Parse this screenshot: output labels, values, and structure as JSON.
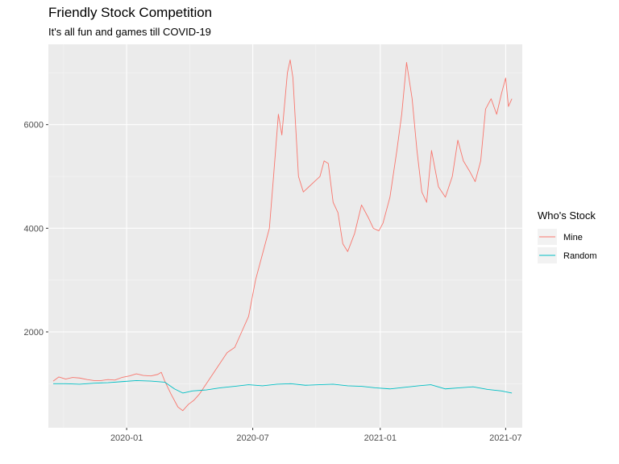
{
  "chart_data": {
    "type": "line",
    "title": "Friendly Stock Competition",
    "subtitle": "It's all fun and games till COVID-19",
    "xlabel": "",
    "ylabel": "",
    "x_type": "date",
    "xlim": [
      "2019-09-10",
      "2021-07-25"
    ],
    "ylim": [
      150,
      7550
    ],
    "x_ticks": [
      {
        "date": "2020-01-01",
        "label": "2020-01"
      },
      {
        "date": "2020-07-01",
        "label": "2020-07"
      },
      {
        "date": "2021-01-01",
        "label": "2021-01"
      },
      {
        "date": "2021-07-01",
        "label": "2021-07"
      }
    ],
    "y_ticks": [
      2000,
      4000,
      6000
    ],
    "grid": true,
    "legend": {
      "title": "Who's Stock",
      "position": "right"
    },
    "series": [
      {
        "name": "Mine",
        "color": "#F8766D",
        "points": [
          [
            "2019-09-17",
            1050
          ],
          [
            "2019-09-25",
            1130
          ],
          [
            "2019-10-05",
            1090
          ],
          [
            "2019-10-15",
            1120
          ],
          [
            "2019-10-25",
            1110
          ],
          [
            "2019-11-05",
            1080
          ],
          [
            "2019-11-15",
            1060
          ],
          [
            "2019-11-25",
            1060
          ],
          [
            "2019-12-05",
            1080
          ],
          [
            "2019-12-15",
            1070
          ],
          [
            "2019-12-25",
            1120
          ],
          [
            "2020-01-05",
            1150
          ],
          [
            "2020-01-15",
            1190
          ],
          [
            "2020-01-25",
            1160
          ],
          [
            "2020-02-05",
            1150
          ],
          [
            "2020-02-15",
            1180
          ],
          [
            "2020-02-20",
            1220
          ],
          [
            "2020-02-25",
            1050
          ],
          [
            "2020-03-05",
            800
          ],
          [
            "2020-03-15",
            550
          ],
          [
            "2020-03-22",
            480
          ],
          [
            "2020-03-30",
            600
          ],
          [
            "2020-04-07",
            680
          ],
          [
            "2020-04-15",
            800
          ],
          [
            "2020-04-25",
            1000
          ],
          [
            "2020-05-05",
            1200
          ],
          [
            "2020-05-15",
            1400
          ],
          [
            "2020-05-25",
            1600
          ],
          [
            "2020-06-05",
            1700
          ],
          [
            "2020-06-15",
            2000
          ],
          [
            "2020-06-25",
            2300
          ],
          [
            "2020-07-05",
            3000
          ],
          [
            "2020-07-15",
            3500
          ],
          [
            "2020-07-25",
            4000
          ],
          [
            "2020-07-31",
            5000
          ],
          [
            "2020-08-07",
            6200
          ],
          [
            "2020-08-12",
            5800
          ],
          [
            "2020-08-20",
            7000
          ],
          [
            "2020-08-24",
            7250
          ],
          [
            "2020-08-28",
            6900
          ],
          [
            "2020-09-05",
            5000
          ],
          [
            "2020-09-12",
            4700
          ],
          [
            "2020-09-20",
            4800
          ],
          [
            "2020-09-28",
            4900
          ],
          [
            "2020-10-06",
            5000
          ],
          [
            "2020-10-12",
            5300
          ],
          [
            "2020-10-18",
            5250
          ],
          [
            "2020-10-25",
            4500
          ],
          [
            "2020-11-01",
            4300
          ],
          [
            "2020-11-08",
            3700
          ],
          [
            "2020-11-15",
            3550
          ],
          [
            "2020-11-25",
            3900
          ],
          [
            "2020-12-05",
            4450
          ],
          [
            "2020-12-15",
            4200
          ],
          [
            "2020-12-22",
            4000
          ],
          [
            "2020-12-30",
            3950
          ],
          [
            "2021-01-05",
            4100
          ],
          [
            "2021-01-15",
            4600
          ],
          [
            "2021-01-25",
            5500
          ],
          [
            "2021-02-01",
            6200
          ],
          [
            "2021-02-08",
            7200
          ],
          [
            "2021-02-16",
            6500
          ],
          [
            "2021-02-23",
            5500
          ],
          [
            "2021-03-02",
            4700
          ],
          [
            "2021-03-09",
            4500
          ],
          [
            "2021-03-16",
            5500
          ],
          [
            "2021-03-26",
            4800
          ],
          [
            "2021-04-05",
            4600
          ],
          [
            "2021-04-15",
            5000
          ],
          [
            "2021-04-23",
            5700
          ],
          [
            "2021-05-01",
            5300
          ],
          [
            "2021-05-10",
            5100
          ],
          [
            "2021-05-18",
            4900
          ],
          [
            "2021-05-26",
            5300
          ],
          [
            "2021-06-02",
            6300
          ],
          [
            "2021-06-10",
            6500
          ],
          [
            "2021-06-18",
            6200
          ],
          [
            "2021-06-25",
            6600
          ],
          [
            "2021-07-01",
            6900
          ],
          [
            "2021-07-05",
            6350
          ],
          [
            "2021-07-10",
            6500
          ]
        ]
      },
      {
        "name": "Random",
        "color": "#00BFC4",
        "points": [
          [
            "2019-09-17",
            1000
          ],
          [
            "2019-10-05",
            1000
          ],
          [
            "2019-10-25",
            990
          ],
          [
            "2019-11-15",
            1010
          ],
          [
            "2019-12-05",
            1020
          ],
          [
            "2019-12-25",
            1040
          ],
          [
            "2020-01-15",
            1060
          ],
          [
            "2020-02-05",
            1050
          ],
          [
            "2020-02-25",
            1030
          ],
          [
            "2020-03-10",
            900
          ],
          [
            "2020-03-22",
            820
          ],
          [
            "2020-04-05",
            860
          ],
          [
            "2020-04-25",
            880
          ],
          [
            "2020-05-15",
            920
          ],
          [
            "2020-06-05",
            950
          ],
          [
            "2020-06-25",
            980
          ],
          [
            "2020-07-15",
            960
          ],
          [
            "2020-08-05",
            990
          ],
          [
            "2020-08-25",
            1000
          ],
          [
            "2020-09-15",
            970
          ],
          [
            "2020-10-05",
            980
          ],
          [
            "2020-10-25",
            990
          ],
          [
            "2020-11-15",
            960
          ],
          [
            "2020-12-05",
            950
          ],
          [
            "2020-12-25",
            920
          ],
          [
            "2021-01-15",
            900
          ],
          [
            "2021-02-05",
            930
          ],
          [
            "2021-02-25",
            960
          ],
          [
            "2021-03-15",
            980
          ],
          [
            "2021-04-05",
            900
          ],
          [
            "2021-04-25",
            920
          ],
          [
            "2021-05-15",
            940
          ],
          [
            "2021-06-05",
            890
          ],
          [
            "2021-06-25",
            860
          ],
          [
            "2021-07-10",
            820
          ]
        ]
      }
    ]
  }
}
